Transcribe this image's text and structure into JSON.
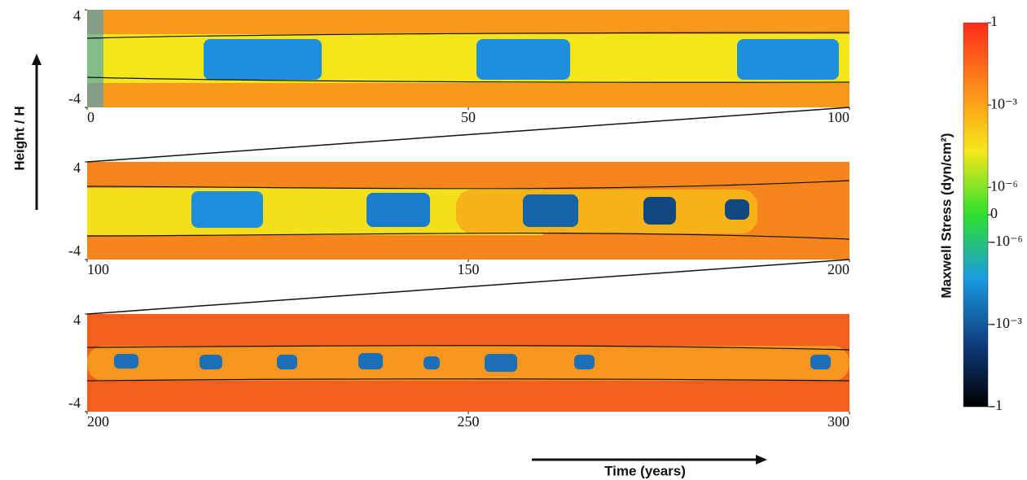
{
  "chart_data": [
    {
      "type": "heatmap",
      "xlim": [
        0,
        100
      ],
      "xticks": [
        0,
        50,
        100
      ],
      "ylim": [
        -4,
        4
      ],
      "yticks": [
        -4,
        4
      ]
    },
    {
      "type": "heatmap",
      "xlim": [
        100,
        200
      ],
      "xticks": [
        100,
        150,
        200
      ],
      "ylim": [
        -4,
        4
      ],
      "yticks": [
        -4,
        4
      ]
    },
    {
      "type": "heatmap",
      "xlim": [
        200,
        300
      ],
      "xticks": [
        200,
        250,
        300
      ],
      "ylim": [
        -4,
        4
      ],
      "yticks": [
        -4,
        4
      ]
    }
  ],
  "ylabel": "Height / H",
  "xlabel": "Time (years)",
  "colorbar": {
    "label": "Maxwell Stress (dyn/cm²)",
    "clim": [
      -1,
      1
    ],
    "linthresh": 1e-06,
    "colors": [
      "#ff2a1a",
      "#ff8a1a",
      "#f5e81a",
      "#2ee02e",
      "#1a9ae0",
      "#0f3e80",
      "#000000"
    ],
    "ticks": [
      1,
      {
        "value": 0.001,
        "label": "10⁻³"
      },
      {
        "value": 1e-06,
        "label": "10⁻⁶"
      },
      0,
      {
        "value": -1e-06,
        "label": "-10⁻⁶"
      },
      {
        "value": -0.001,
        "label": "-10⁻³"
      },
      -1
    ]
  }
}
